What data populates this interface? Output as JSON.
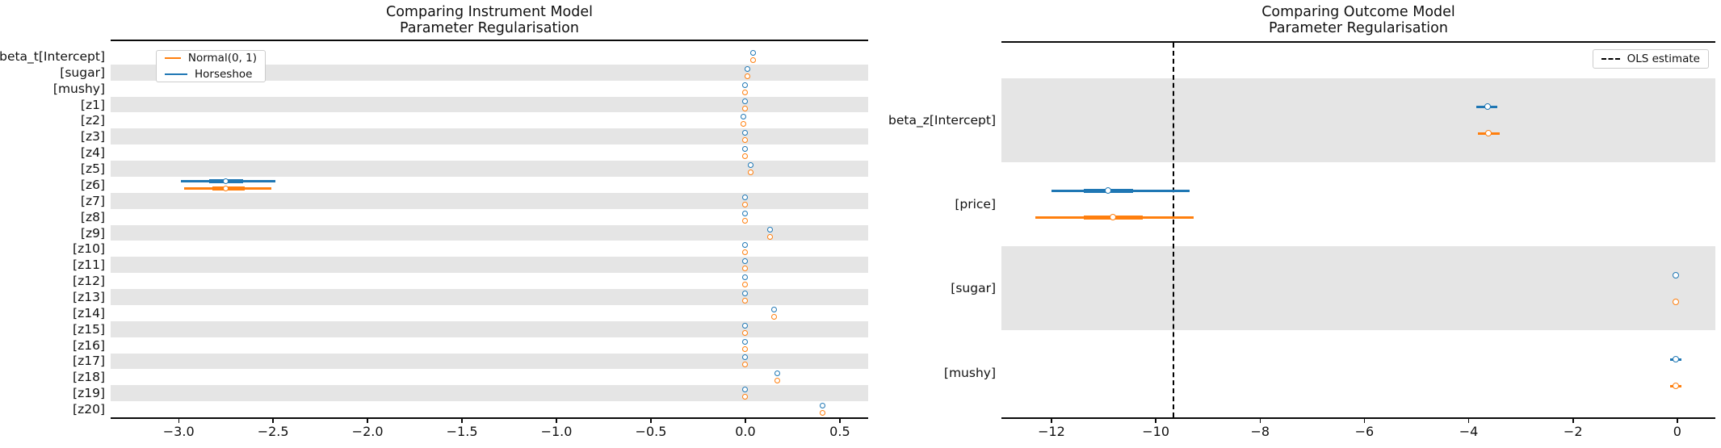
{
  "figure": {
    "background": "#ffffff"
  },
  "colors": {
    "normal": "#ff7f0e",
    "horseshoe": "#1f77b4",
    "band": "#e5e5e5",
    "spine": "#0a0a0a",
    "ols": "#000000"
  },
  "chart_data": [
    {
      "type": "forest",
      "title": "Comparing Instrument Model Parameter Regularisation",
      "title_line1": "Comparing Instrument Model",
      "title_line2": "Parameter Regularisation",
      "xlabel": "",
      "xlim": [
        -3.36,
        0.65
      ],
      "xticks": [
        -3.0,
        -2.5,
        -2.0,
        -1.5,
        -1.0,
        -0.5,
        0.0,
        0.5
      ],
      "tick_decimals": 1,
      "grid": false,
      "shaded_parity": 1,
      "legend": {
        "position": "upper-left",
        "items": [
          {
            "label": "Normal(0, 1)",
            "color_key": "normal",
            "style": "solid"
          },
          {
            "label": "Horseshoe",
            "color_key": "horseshoe",
            "style": "solid"
          }
        ]
      },
      "rows": [
        {
          "label": "beta_t[Intercept]",
          "horseshoe": {
            "mean": 0.04
          },
          "normal": {
            "mean": 0.04
          }
        },
        {
          "label": "[sugar]",
          "horseshoe": {
            "mean": 0.01
          },
          "normal": {
            "mean": 0.01
          }
        },
        {
          "label": "[mushy]",
          "horseshoe": {
            "mean": 0.0
          },
          "normal": {
            "mean": 0.0
          }
        },
        {
          "label": "[z1]",
          "horseshoe": {
            "mean": 0.0
          },
          "normal": {
            "mean": 0.0
          }
        },
        {
          "label": "[z2]",
          "horseshoe": {
            "mean": -0.01
          },
          "normal": {
            "mean": -0.01
          }
        },
        {
          "label": "[z3]",
          "horseshoe": {
            "mean": 0.0
          },
          "normal": {
            "mean": 0.0
          }
        },
        {
          "label": "[z4]",
          "horseshoe": {
            "mean": 0.0
          },
          "normal": {
            "mean": 0.0
          }
        },
        {
          "label": "[z5]",
          "horseshoe": {
            "mean": 0.03
          },
          "normal": {
            "mean": 0.03
          }
        },
        {
          "label": "[z6]",
          "horseshoe": {
            "mean": -2.75,
            "hdi": [
              -2.99,
              -2.49
            ],
            "quartiles": [
              -2.84,
              -2.66
            ]
          },
          "normal": {
            "mean": -2.75,
            "hdi": [
              -2.97,
              -2.51
            ],
            "quartiles": [
              -2.82,
              -2.65
            ]
          }
        },
        {
          "label": "[z7]",
          "horseshoe": {
            "mean": 0.0
          },
          "normal": {
            "mean": 0.0
          }
        },
        {
          "label": "[z8]",
          "horseshoe": {
            "mean": 0.0
          },
          "normal": {
            "mean": 0.0
          }
        },
        {
          "label": "[z9]",
          "horseshoe": {
            "mean": 0.13
          },
          "normal": {
            "mean": 0.13
          }
        },
        {
          "label": "[z10]",
          "horseshoe": {
            "mean": 0.0
          },
          "normal": {
            "mean": 0.0
          }
        },
        {
          "label": "[z11]",
          "horseshoe": {
            "mean": 0.0
          },
          "normal": {
            "mean": 0.0
          }
        },
        {
          "label": "[z12]",
          "horseshoe": {
            "mean": 0.0
          },
          "normal": {
            "mean": 0.0
          }
        },
        {
          "label": "[z13]",
          "horseshoe": {
            "mean": 0.0
          },
          "normal": {
            "mean": 0.0
          }
        },
        {
          "label": "[z14]",
          "horseshoe": {
            "mean": 0.15
          },
          "normal": {
            "mean": 0.15
          }
        },
        {
          "label": "[z15]",
          "horseshoe": {
            "mean": 0.0
          },
          "normal": {
            "mean": 0.0
          }
        },
        {
          "label": "[z16]",
          "horseshoe": {
            "mean": 0.0
          },
          "normal": {
            "mean": 0.0
          }
        },
        {
          "label": "[z17]",
          "horseshoe": {
            "mean": 0.0
          },
          "normal": {
            "mean": 0.0
          }
        },
        {
          "label": "[z18]",
          "horseshoe": {
            "mean": 0.17
          },
          "normal": {
            "mean": 0.17
          }
        },
        {
          "label": "[z19]",
          "horseshoe": {
            "mean": 0.0
          },
          "normal": {
            "mean": 0.0
          }
        },
        {
          "label": "[z20]",
          "horseshoe": {
            "mean": 0.41
          },
          "normal": {
            "mean": 0.41
          }
        }
      ]
    },
    {
      "type": "forest",
      "title": "Comparing Outcome Model Parameter Regularisation",
      "title_line1": "Comparing Outcome Model",
      "title_line2": "Parameter Regularisation",
      "xlabel": "",
      "xlim": [
        -12.96,
        0.73
      ],
      "xticks": [
        -12,
        -10,
        -8,
        -6,
        -4,
        -2,
        0
      ],
      "tick_decimals": 0,
      "grid": false,
      "shaded_parity": 0,
      "ols_estimate": -9.66,
      "legend": {
        "position": "upper-right",
        "items": [
          {
            "label": "OLS estimate",
            "color_key": "ols",
            "style": "dashed"
          }
        ]
      },
      "rows": [
        {
          "label": "beta_z[Intercept]",
          "horseshoe": {
            "mean": -3.64,
            "hdi": [
              -3.85,
              -3.45
            ]
          },
          "normal": {
            "mean": -3.62,
            "hdi": [
              -3.82,
              -3.4
            ]
          }
        },
        {
          "label": "[price]",
          "horseshoe": {
            "mean": -10.91,
            "hdi": [
              -12.0,
              -9.35
            ],
            "quartiles": [
              -11.38,
              -10.43
            ]
          },
          "normal": {
            "mean": -10.82,
            "hdi": [
              -12.31,
              -9.27
            ],
            "quartiles": [
              -11.38,
              -10.25
            ]
          }
        },
        {
          "label": "[sugar]",
          "horseshoe": {
            "mean": -0.03
          },
          "normal": {
            "mean": -0.03
          }
        },
        {
          "label": "[mushy]",
          "horseshoe": {
            "mean": -0.03,
            "hdi": [
              -0.14,
              0.08
            ]
          },
          "normal": {
            "mean": -0.03,
            "hdi": [
              -0.14,
              0.08
            ]
          }
        }
      ]
    }
  ]
}
